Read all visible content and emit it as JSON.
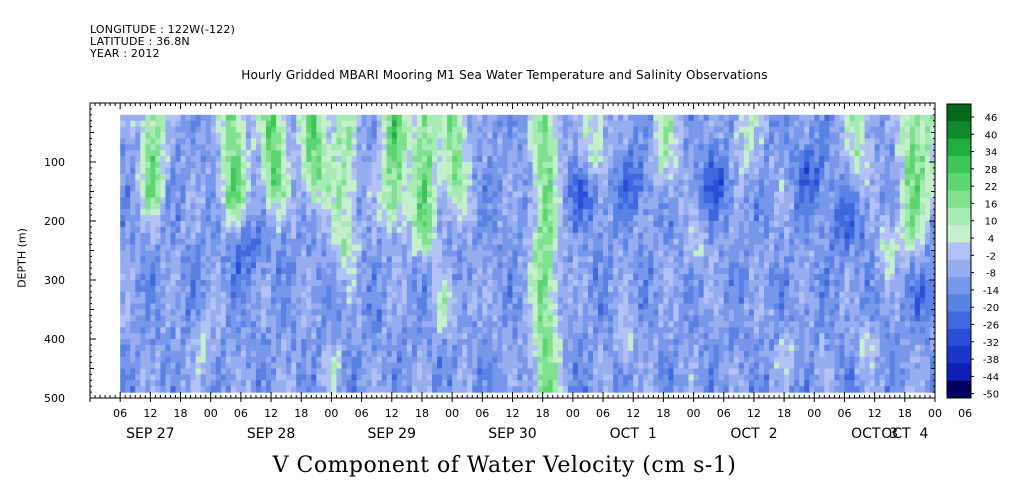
{
  "header": {
    "longitude": "LONGITUDE : 122W(-122)",
    "latitude": "LATITUDE : 36.8N",
    "year": "YEAR : 2012",
    "title": "Hourly Gridded MBARI Mooring M1 Sea Water Temperature and Salinity Observations"
  },
  "chart_data": {
    "type": "heatmap",
    "title": "Hourly Gridded MBARI Mooring M1 Sea Water Temperature and Salinity Observations",
    "xlabel": "V Component of Water Velocity (cm s-1)",
    "ylabel": "DEPTH (m)",
    "ylim": [
      500,
      0
    ],
    "y_ticks": [
      100,
      200,
      300,
      400,
      500
    ],
    "x_hour_ticks": [
      "06",
      "12",
      "18",
      "00",
      "06",
      "12",
      "18",
      "00",
      "06",
      "12",
      "18",
      "00",
      "06",
      "12",
      "18",
      "00",
      "06",
      "12",
      "18",
      "00",
      "06",
      "12",
      "18",
      "00",
      "06",
      "12",
      "18",
      "00",
      "06"
    ],
    "x_day_labels": [
      {
        "label": "SEP 27",
        "hour": 12
      },
      {
        "label": "SEP 28",
        "hour": 36
      },
      {
        "label": "SEP 29",
        "hour": 60
      },
      {
        "label": "SEP 30",
        "hour": 84
      },
      {
        "label": "OCT  1",
        "hour": 108
      },
      {
        "label": "OCT  2",
        "hour": 132
      },
      {
        "label": "OCT  3",
        "hour": 156
      },
      {
        "label": "OCT  4",
        "hour": 162
      }
    ],
    "time_range_hours": [
      0,
      168
    ],
    "data_start_hour": 6,
    "data_depth_range": [
      20,
      490
    ],
    "colorbar": {
      "range": [
        -50,
        50
      ],
      "labels": [
        "46",
        "40",
        "34",
        "28",
        "22",
        "16",
        "10",
        "4",
        "-2",
        "-8",
        "-14",
        "-20",
        "-26",
        "-32",
        "-38",
        "-44",
        "-50"
      ]
    },
    "green_columns": [
      {
        "hour": 12,
        "depth": 130,
        "strength": 0.9
      },
      {
        "hour": 28,
        "depth": 140,
        "strength": 1.0
      },
      {
        "hour": 36,
        "depth": 120,
        "strength": 1.0
      },
      {
        "hour": 44,
        "depth": 110,
        "strength": 1.0
      },
      {
        "hour": 50,
        "depth": 220,
        "strength": 0.7
      },
      {
        "hour": 60,
        "depth": 150,
        "strength": 1.0
      },
      {
        "hour": 66,
        "depth": 200,
        "strength": 0.9
      },
      {
        "hour": 72,
        "depth": 120,
        "strength": 0.8
      },
      {
        "hour": 90,
        "depth": 490,
        "strength": 0.9
      },
      {
        "hour": 100,
        "depth": 60,
        "strength": 0.6
      },
      {
        "hour": 114,
        "depth": 90,
        "strength": 0.6
      },
      {
        "hour": 130,
        "depth": 60,
        "strength": 0.5
      },
      {
        "hour": 152,
        "depth": 70,
        "strength": 0.6
      },
      {
        "hour": 163,
        "depth": 200,
        "strength": 0.8
      },
      {
        "hour": 167,
        "depth": 120,
        "strength": 0.5
      }
    ],
    "green_patches": [
      {
        "hour": 70,
        "depth": 340,
        "strength": 0.6
      },
      {
        "hour": 75,
        "depth": 320,
        "strength": 0.4
      },
      {
        "hour": 120,
        "depth": 240,
        "strength": 0.5
      },
      {
        "hour": 158,
        "depth": 240,
        "strength": 0.7
      },
      {
        "hour": 154,
        "depth": 400,
        "strength": 0.5
      },
      {
        "hour": 138,
        "depth": 420,
        "strength": 0.4
      },
      {
        "hour": 106,
        "depth": 400,
        "strength": 0.5
      },
      {
        "hour": 22,
        "depth": 410,
        "strength": 0.5
      },
      {
        "hour": 48,
        "depth": 440,
        "strength": 0.4
      }
    ],
    "blue_cores": [
      {
        "hour": 31,
        "depth": 240,
        "strength": 0.6
      },
      {
        "hour": 98,
        "depth": 150,
        "strength": 0.7
      },
      {
        "hour": 108,
        "depth": 130,
        "strength": 0.7
      },
      {
        "hour": 124,
        "depth": 130,
        "strength": 0.8
      },
      {
        "hour": 143,
        "depth": 115,
        "strength": 0.8
      },
      {
        "hour": 150,
        "depth": 200,
        "strength": 0.6
      },
      {
        "hour": 166,
        "depth": 320,
        "strength": 0.6
      }
    ]
  }
}
